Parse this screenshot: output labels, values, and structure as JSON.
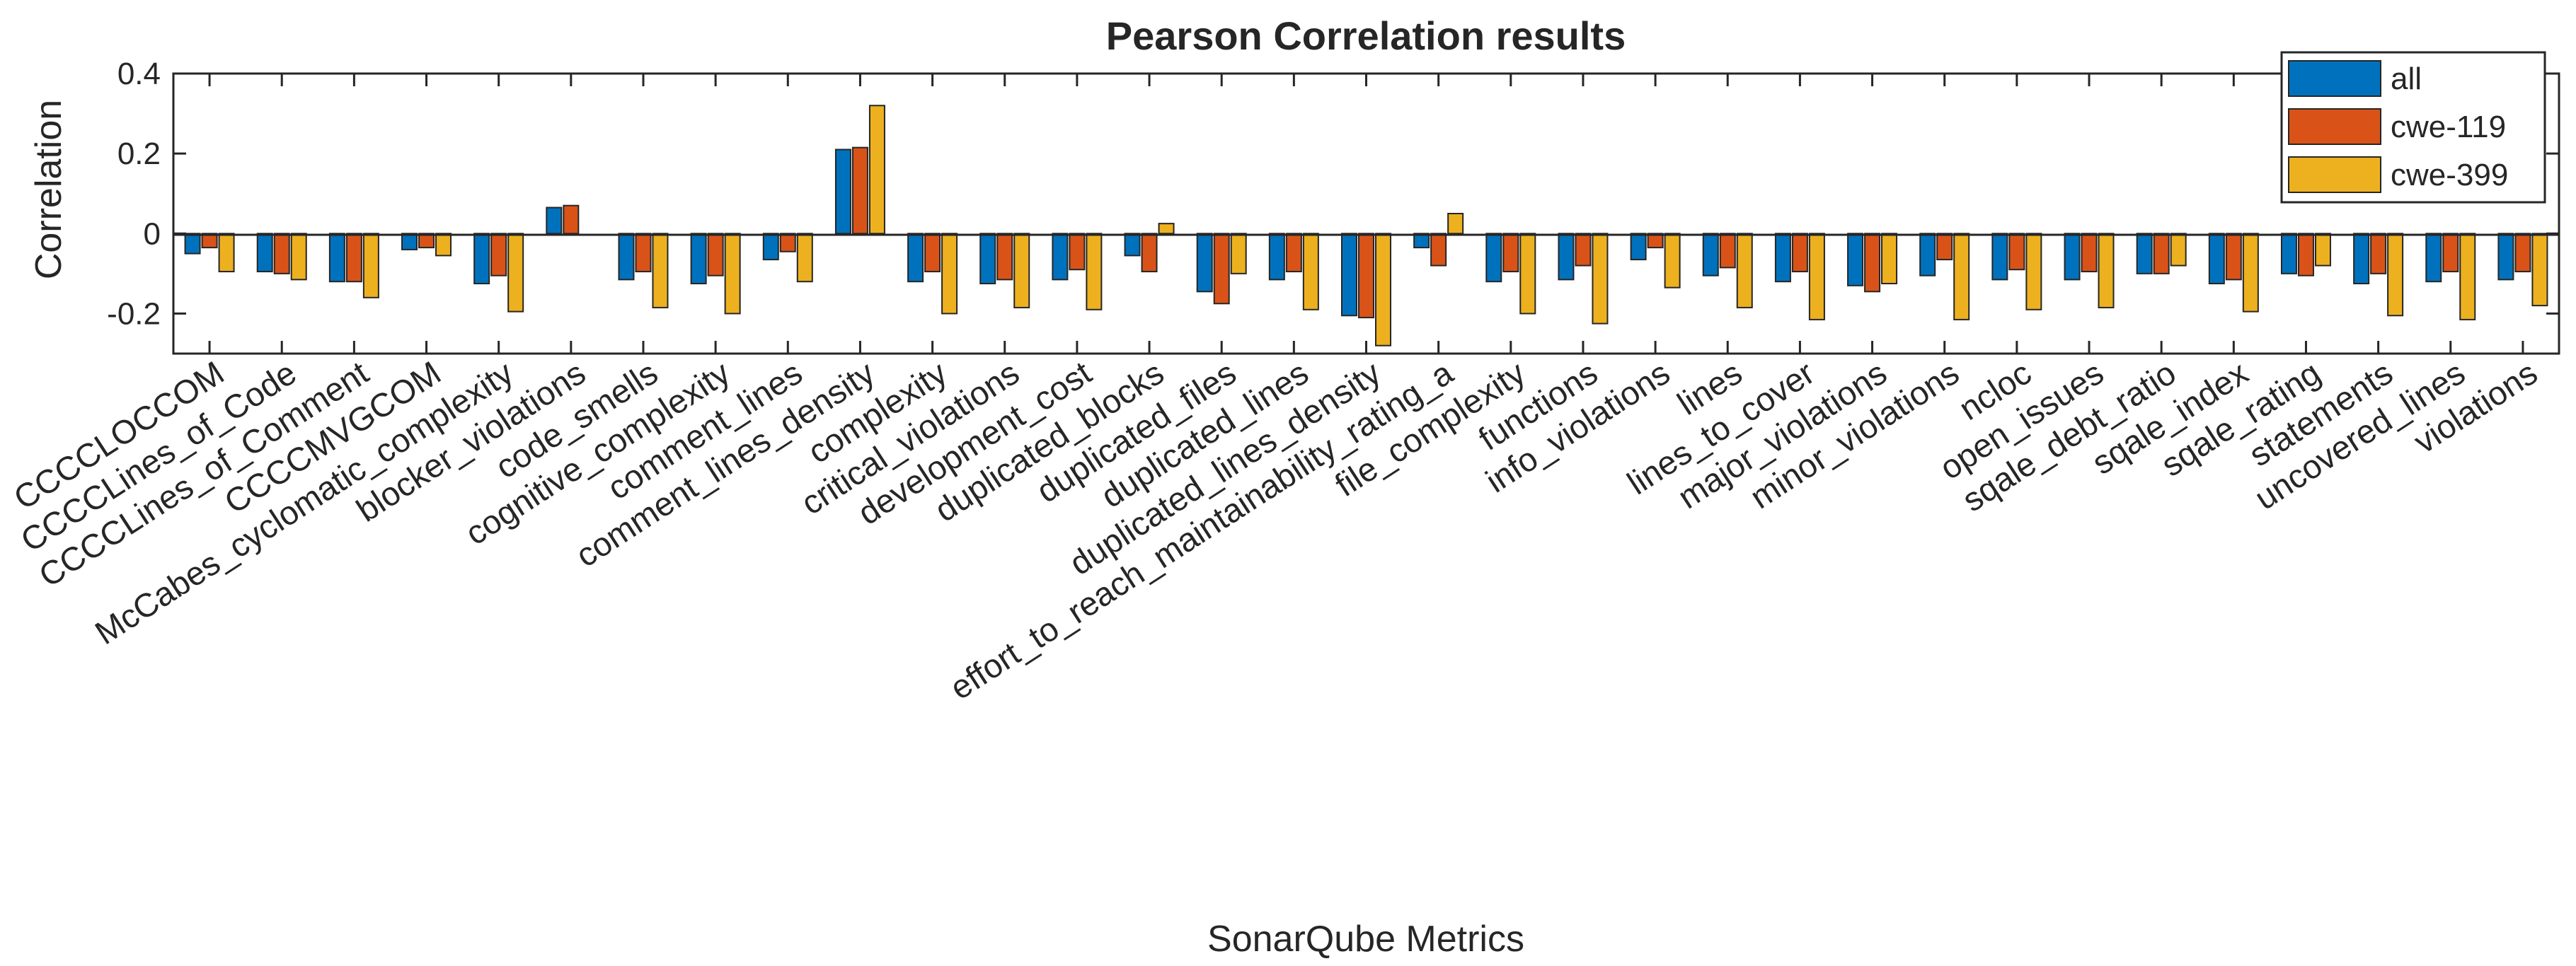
{
  "chart_data": {
    "type": "bar",
    "title": "Pearson Correlation results",
    "xlabel": "SonarQube Metrics",
    "ylabel": "Correlation",
    "ylim": [
      -0.3,
      0.4
    ],
    "yticks": [
      -0.2,
      0,
      0.2,
      0.4
    ],
    "ytick_labels": [
      "-0.2",
      "0",
      "0.2",
      "0.4"
    ],
    "legend_position": "top-right",
    "grid": false,
    "categories": [
      "CCCCLOCCOM",
      "CCCCLines_of_Code",
      "CCCCLines_of_Comment",
      "CCCCMVGCOM",
      "McCabes_cyclomatic_complexity",
      "blocker_violations",
      "code_smells",
      "cognitive_complexity",
      "comment_lines",
      "comment_lines_density",
      "complexity",
      "critical_violations",
      "development_cost",
      "duplicated_blocks",
      "duplicated_files",
      "duplicated_lines",
      "duplicated_lines_density",
      "effort_to_reach_maintainability_rating_a",
      "file_complexity",
      "functions",
      "info_violations",
      "lines",
      "lines_to_cover",
      "major_violations",
      "minor_violations",
      "ncloc",
      "open_issues",
      "sqale_debt_ratio",
      "sqale_index",
      "sqale_rating",
      "statements",
      "uncovered_lines",
      "violations"
    ],
    "series": [
      {
        "name": "all",
        "color": "#0072BD",
        "values": [
          -0.05,
          -0.095,
          -0.12,
          -0.04,
          -0.125,
          0.065,
          -0.115,
          -0.125,
          -0.065,
          0.21,
          -0.12,
          -0.125,
          -0.115,
          -0.055,
          -0.145,
          -0.115,
          -0.205,
          -0.035,
          -0.12,
          -0.115,
          -0.065,
          -0.105,
          -0.12,
          -0.13,
          -0.105,
          -0.115,
          -0.115,
          -0.1,
          -0.125,
          -0.1,
          -0.125,
          -0.12,
          -0.115
        ]
      },
      {
        "name": "cwe-119",
        "color": "#D95319",
        "values": [
          -0.035,
          -0.1,
          -0.12,
          -0.035,
          -0.105,
          0.07,
          -0.095,
          -0.105,
          -0.045,
          0.215,
          -0.095,
          -0.115,
          -0.09,
          -0.095,
          -0.175,
          -0.095,
          -0.21,
          -0.08,
          -0.095,
          -0.08,
          -0.035,
          -0.085,
          -0.095,
          -0.145,
          -0.065,
          -0.09,
          -0.095,
          -0.1,
          -0.115,
          -0.105,
          -0.1,
          -0.095,
          -0.095
        ]
      },
      {
        "name": "cwe-399",
        "color": "#EDB120",
        "values": [
          -0.095,
          -0.115,
          -0.16,
          -0.055,
          -0.195,
          0.0,
          -0.185,
          -0.2,
          -0.12,
          0.32,
          -0.2,
          -0.185,
          -0.19,
          0.025,
          -0.1,
          -0.19,
          -0.28,
          0.05,
          -0.2,
          -0.225,
          -0.135,
          -0.185,
          -0.215,
          -0.125,
          -0.215,
          -0.19,
          -0.185,
          -0.08,
          -0.195,
          -0.08,
          -0.205,
          -0.215,
          -0.18
        ]
      }
    ]
  }
}
